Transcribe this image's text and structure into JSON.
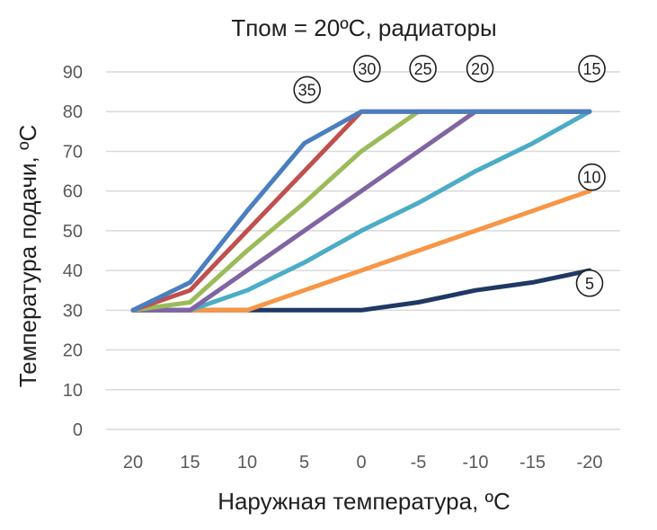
{
  "chart_data": {
    "type": "line",
    "title": "Tпом = 20ºC, радиаторы",
    "xlabel": "Наружная температура, ºC",
    "ylabel": "Температура подачи, ºC",
    "categories": [
      "20",
      "15",
      "10",
      "5",
      "0",
      "-5",
      "-10",
      "-15",
      "-20"
    ],
    "ylim": [
      0,
      90
    ],
    "yticks": [
      0,
      10,
      20,
      30,
      40,
      50,
      60,
      70,
      80,
      90
    ],
    "grid": true,
    "series": [
      {
        "label": "35",
        "color": "#4a7ebf",
        "values": [
          30,
          37,
          55,
          72,
          80,
          80,
          80,
          80,
          80
        ]
      },
      {
        "label": "30",
        "color": "#c0504d",
        "values": [
          30,
          35,
          50,
          65,
          80,
          80,
          80,
          80,
          80
        ]
      },
      {
        "label": "25",
        "color": "#9bbb59",
        "values": [
          30,
          32,
          45,
          57,
          70,
          80,
          80,
          80,
          80
        ]
      },
      {
        "label": "20",
        "color": "#8064a2",
        "values": [
          30,
          30,
          40,
          50,
          60,
          70,
          80,
          80,
          80
        ]
      },
      {
        "label": "15",
        "color": "#4bacc6",
        "values": [
          30,
          30,
          35,
          42,
          50,
          57,
          65,
          72,
          80
        ]
      },
      {
        "label": "10",
        "color": "#f79646",
        "values": [
          30,
          30,
          30,
          35,
          40,
          45,
          50,
          55,
          60
        ]
      },
      {
        "label": "5",
        "color": "#1f3864",
        "values": [
          30,
          30,
          30,
          30,
          30,
          32,
          35,
          37,
          40
        ]
      }
    ]
  }
}
